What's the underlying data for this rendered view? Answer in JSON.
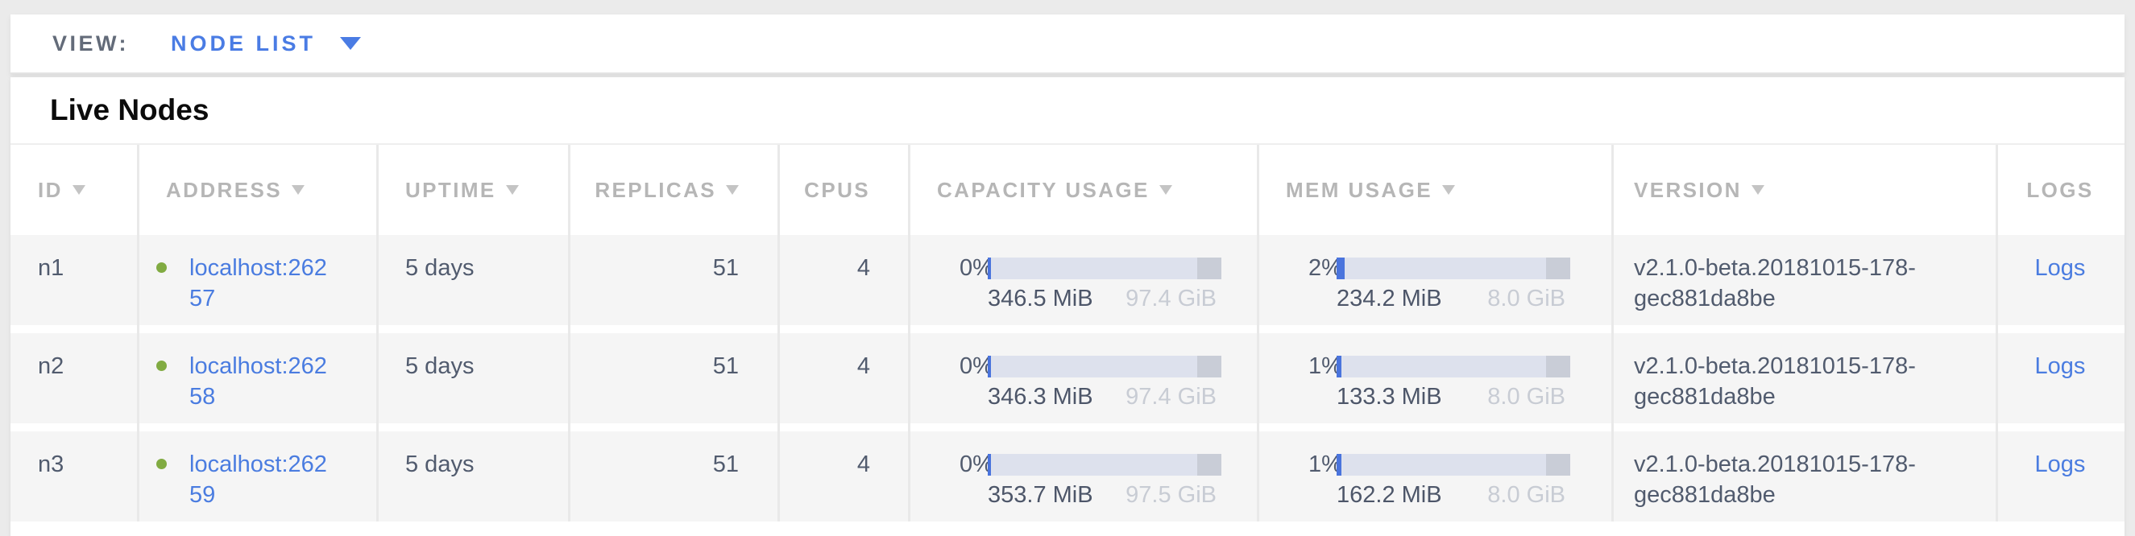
{
  "view_bar": {
    "label": "VIEW:",
    "selected": "NODE LIST"
  },
  "section_title": "Live Nodes",
  "colors": {
    "accent_blue": "#4a7ce0",
    "live_dot_green": "#81ab42",
    "bar_track": "#dde1ed",
    "bar_used_blue": "#4a74dd",
    "bar_reserved_gray": "#c9cdd7",
    "header_gray": "#b6b6b6",
    "body_text": "#515b6e"
  },
  "table": {
    "headers": {
      "id": "ID",
      "address": "ADDRESS",
      "uptime": "UPTIME",
      "replicas": "REPLICAS",
      "cpus": "CPUS",
      "capacity": "CAPACITY USAGE",
      "mem": "MEM USAGE",
      "version": "VERSION",
      "logs": "LOGS"
    },
    "rows": [
      {
        "id": "n1",
        "address": "localhost:26257",
        "uptime": "5 days",
        "replicas": "51",
        "cpus": "4",
        "capacity_percent": "0%",
        "capacity_used": "346.5 MiB",
        "capacity_total": "97.4 GiB",
        "capacity_bar_pct": "1.4%",
        "mem_percent": "2%",
        "mem_used": "234.2 MiB",
        "mem_total": "8.0 GiB",
        "mem_bar_pct": "3.4%",
        "version": "v2.1.0-beta.20181015-178-gec881da8be",
        "logs_label": "Logs"
      },
      {
        "id": "n2",
        "address": "localhost:26258",
        "uptime": "5 days",
        "replicas": "51",
        "cpus": "4",
        "capacity_percent": "0%",
        "capacity_used": "346.3 MiB",
        "capacity_total": "97.4 GiB",
        "capacity_bar_pct": "1.4%",
        "mem_percent": "1%",
        "mem_used": "133.3 MiB",
        "mem_total": "8.0 GiB",
        "mem_bar_pct": "2%",
        "version": "v2.1.0-beta.20181015-178-gec881da8be",
        "logs_label": "Logs"
      },
      {
        "id": "n3",
        "address": "localhost:26259",
        "uptime": "5 days",
        "replicas": "51",
        "cpus": "4",
        "capacity_percent": "0%",
        "capacity_used": "353.7 MiB",
        "capacity_total": "97.5 GiB",
        "capacity_bar_pct": "1.4%",
        "mem_percent": "1%",
        "mem_used": "162.2 MiB",
        "mem_total": "8.0 GiB",
        "mem_bar_pct": "2%",
        "version": "v2.1.0-beta.20181015-178-gec881da8be",
        "logs_label": "Logs"
      }
    ]
  }
}
